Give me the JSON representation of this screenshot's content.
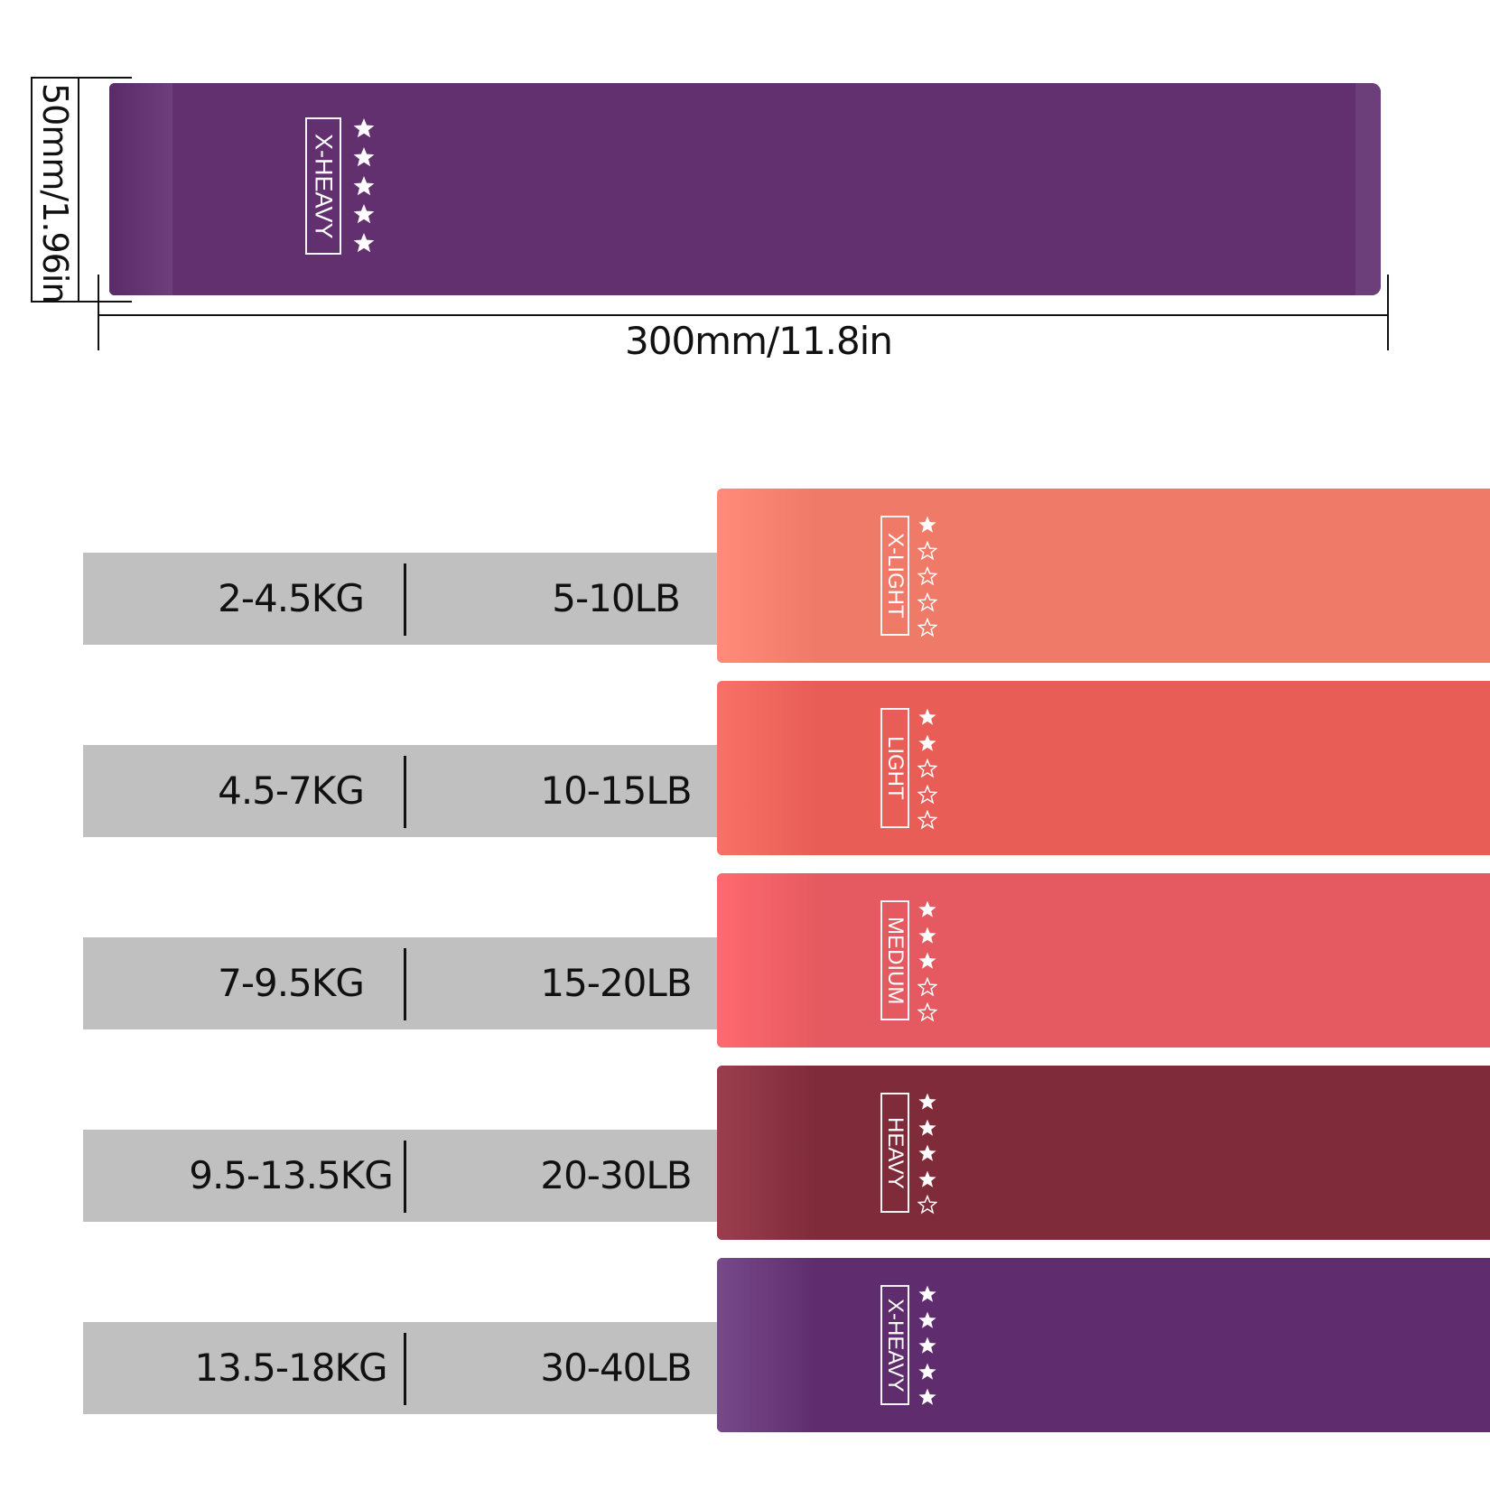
{
  "dimensions": {
    "width_label": "300mm/11.8in",
    "height_label": "50mm/1.96in"
  },
  "hero_band": {
    "label": "X-HEAVY",
    "color": "#63306f",
    "stars_filled": 5,
    "stars_total": 5
  },
  "bands": [
    {
      "label": "X-LIGHT",
      "kg": "2-4.5KG",
      "lb": "5-10LB",
      "color": "#f07a68",
      "shade": "#ff8b78",
      "stars_filled": 1,
      "stars_total": 5
    },
    {
      "label": "LIGHT",
      "kg": "4.5-7KG",
      "lb": "10-15LB",
      "color": "#e85e56",
      "shade": "#f87166",
      "stars_filled": 2,
      "stars_total": 5
    },
    {
      "label": "MEDIUM",
      "kg": "7-9.5KG",
      "lb": "15-20LB",
      "color": "#e55a60",
      "shade": "#ff6a70",
      "stars_filled": 3,
      "stars_total": 5
    },
    {
      "label": "HEAVY",
      "kg": "9.5-13.5KG",
      "lb": "20-30LB",
      "color": "#7f2b3a",
      "shade": "#9a3e4d",
      "stars_filled": 4,
      "stars_total": 5
    },
    {
      "label": "X-HEAVY",
      "kg": "13.5-18KG",
      "lb": "30-40LB",
      "color": "#5f2d6e",
      "shade": "#77498a",
      "stars_filled": 5,
      "stars_total": 5
    }
  ]
}
